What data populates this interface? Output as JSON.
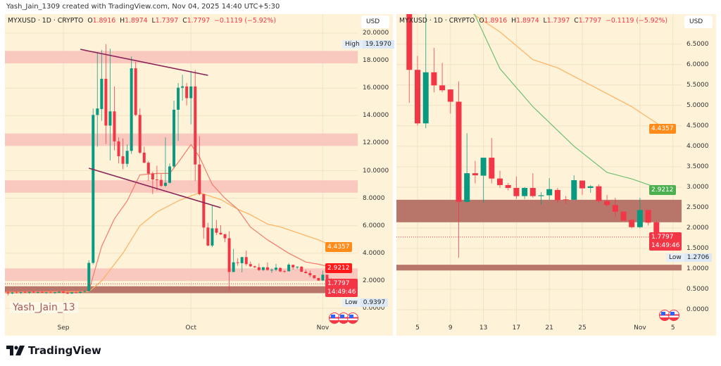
{
  "header": {
    "credit": "Yash_Jain_1309 created with TradingView.com, Nov 04, 2025 14:40 UTC+5:30"
  },
  "legend": {
    "symbol": "MYXUSD · 1D · CRYPTO",
    "o_label": "O",
    "o": "1.8916",
    "h_label": "H",
    "h": "1.8974",
    "l_label": "L",
    "l": "1.7397",
    "c_label": "C",
    "c": "1.7797",
    "change": "−0.1119 (−5.92%)"
  },
  "currency_button": "USD",
  "watermark": "Yash_Jain_13",
  "footer": {
    "brand": "TradingView"
  },
  "colors": {
    "up": "#089981",
    "down": "#f23645",
    "background": "#fef2d8",
    "zone_pink": "#f8c3bd",
    "zone_brown": "#b8756a",
    "trendline": "#8b2456",
    "fast_ma_left": "#f47a6a",
    "fast_ma_right": "#6fbf73",
    "slow_ma": "#ffb15e"
  },
  "icons": {
    "flag": "us-flag-icon",
    "logo": "tradingview-logo-icon"
  },
  "chart_data": [
    {
      "type": "candlestick",
      "panel": "left",
      "y_ticks": [
        "20.0000",
        "18.0000",
        "16.0000",
        "14.0000",
        "12.0000",
        "10.0000",
        "8.0000",
        "6.0000",
        "4.0000",
        "2.0000",
        "0.0000"
      ],
      "x_ticks": [
        {
          "label": "Sep",
          "date": "2025-09-01"
        },
        {
          "label": "Oct",
          "date": "2025-10-01"
        },
        {
          "label": "Nov",
          "date": "2025-11-01"
        }
      ],
      "ylim": [
        0,
        20
      ],
      "grid": true,
      "high": {
        "label": "High",
        "value": "19.1970"
      },
      "low": {
        "label": "Low",
        "value": "0.9397"
      },
      "tags": {
        "slow_ma": "4.4357",
        "fast_ma": "2.9212",
        "last": "1.7797",
        "countdown": "14:49:46"
      },
      "zones_pink": [
        [
          17.8,
          18.7
        ],
        [
          11.8,
          12.7
        ],
        [
          8.4,
          9.3
        ],
        [
          2.0,
          2.9
        ]
      ],
      "zones_brown": [
        [
          1.1,
          1.6
        ]
      ],
      "trendlines": [
        [
          [
            "2025-09-05",
            18.82
          ],
          [
            "2025-10-05",
            16.93
          ]
        ],
        [
          [
            "2025-09-07",
            10.18
          ],
          [
            "2025-10-08",
            7.31
          ]
        ]
      ],
      "fast_ma": [
        [
          "2025-08-18",
          1.2
        ],
        [
          "2025-09-07",
          1.25
        ],
        [
          "2025-09-10",
          4.5
        ],
        [
          "2025-09-13",
          6.5
        ],
        [
          "2025-09-16",
          7.8
        ],
        [
          "2025-09-19",
          9.7
        ],
        [
          "2025-09-23",
          9.8
        ],
        [
          "2025-09-26",
          9.8
        ],
        [
          "2025-09-28",
          10.6
        ],
        [
          "2025-10-01",
          11.9
        ],
        [
          "2025-10-03",
          11.0
        ],
        [
          "2025-10-06",
          9.0
        ],
        [
          "2025-10-09",
          8.0
        ],
        [
          "2025-10-12",
          7.2
        ],
        [
          "2025-10-15",
          5.9
        ],
        [
          "2025-10-19",
          4.97
        ],
        [
          "2025-10-24",
          4.0
        ],
        [
          "2025-10-28",
          3.36
        ],
        [
          "2025-10-31",
          3.2
        ],
        [
          "2025-11-04",
          2.9212
        ]
      ],
      "slow_ma": [
        [
          "2025-08-18",
          1.15
        ],
        [
          "2025-09-07",
          1.2
        ],
        [
          "2025-09-10",
          2.0
        ],
        [
          "2025-09-15",
          4.0
        ],
        [
          "2025-09-19",
          6.0
        ],
        [
          "2025-09-23",
          7.0
        ],
        [
          "2025-09-28",
          7.8
        ],
        [
          "2025-10-03",
          8.4
        ],
        [
          "2025-10-08",
          7.9
        ],
        [
          "2025-10-12",
          7.2
        ],
        [
          "2025-10-15",
          6.8
        ],
        [
          "2025-10-19",
          6.12
        ],
        [
          "2025-10-22",
          5.92
        ],
        [
          "2025-10-31",
          4.97
        ],
        [
          "2025-11-04",
          4.4357
        ]
      ]
    },
    {
      "type": "candlestick",
      "panel": "right",
      "y_ticks": [
        "6.5000",
        "6.0000",
        "5.5000",
        "5.0000",
        "4.5000",
        "4.0000",
        "3.5000",
        "3.0000",
        "2.5000",
        "2.0000",
        "1.5000",
        "1.0000",
        "0.5000",
        "0.0000"
      ],
      "x_ticks": [
        {
          "label": "5",
          "date": "2025-10-05"
        },
        {
          "label": "9",
          "date": "2025-10-09"
        },
        {
          "label": "13",
          "date": "2025-10-13"
        },
        {
          "label": "17",
          "date": "2025-10-17"
        },
        {
          "label": "21",
          "date": "2025-10-21"
        },
        {
          "label": "25",
          "date": "2025-10-25"
        },
        {
          "label": "Nov",
          "date": "2025-11-01"
        },
        {
          "label": "5",
          "date": "2025-11-05"
        }
      ],
      "ylim": [
        0,
        6.8
      ],
      "grid": true,
      "low": {
        "label": "Low",
        "value": "1.2706"
      },
      "tags": {
        "slow_ma": "4.4357",
        "fast_ma": "2.9212",
        "last": "1.7797",
        "countdown": "14:49:46"
      },
      "zones_pink": [],
      "zones_brown": [
        [
          2.14,
          2.69
        ],
        [
          0.96,
          1.1
        ]
      ],
      "trendlines": []
    }
  ],
  "candles": [
    [
      "2025-08-18",
      1.45,
      1.55,
      1.12,
      1.15
    ],
    [
      "2025-08-19",
      1.15,
      1.22,
      0.9397,
      1.08
    ],
    [
      "2025-08-20",
      1.08,
      1.2,
      1.02,
      1.15
    ],
    [
      "2025-08-21",
      1.15,
      1.24,
      1.08,
      1.12
    ],
    [
      "2025-08-22",
      1.12,
      1.2,
      1.05,
      1.17
    ],
    [
      "2025-08-23",
      1.17,
      1.25,
      1.1,
      1.13
    ],
    [
      "2025-08-24",
      1.13,
      1.22,
      1.06,
      1.19
    ],
    [
      "2025-08-25",
      1.19,
      1.26,
      1.12,
      1.15
    ],
    [
      "2025-08-26",
      1.15,
      1.21,
      1.08,
      1.18
    ],
    [
      "2025-08-27",
      1.18,
      1.24,
      1.1,
      1.14
    ],
    [
      "2025-08-28",
      1.14,
      1.2,
      1.07,
      1.16
    ],
    [
      "2025-08-29",
      1.16,
      1.23,
      1.1,
      1.13
    ],
    [
      "2025-08-30",
      1.13,
      1.19,
      1.05,
      1.17
    ],
    [
      "2025-08-31",
      1.17,
      1.25,
      1.12,
      1.2
    ],
    [
      "2025-09-01",
      1.2,
      1.28,
      1.1,
      1.12
    ],
    [
      "2025-09-02",
      1.12,
      1.18,
      1.02,
      1.08
    ],
    [
      "2025-09-03",
      1.08,
      1.2,
      1.04,
      1.16
    ],
    [
      "2025-09-04",
      1.16,
      1.22,
      1.08,
      1.12
    ],
    [
      "2025-09-05",
      1.12,
      1.24,
      1.08,
      1.2
    ],
    [
      "2025-09-06",
      1.2,
      1.3,
      1.15,
      1.25
    ],
    [
      "2025-09-07",
      1.25,
      3.5,
      1.2,
      3.3
    ],
    [
      "2025-09-08",
      3.3,
      14.52,
      3.2,
      14.05
    ],
    [
      "2025-09-09",
      14.05,
      18.61,
      11.74,
      14.52
    ],
    [
      "2025-09-10",
      14.48,
      18.78,
      13.62,
      16.68
    ],
    [
      "2025-09-11",
      16.68,
      19.197,
      11.94,
      13.28
    ],
    [
      "2025-09-12",
      13.28,
      18.87,
      10.74,
      14.31
    ],
    [
      "2025-09-13",
      14.31,
      16.12,
      11.48,
      12.13
    ],
    [
      "2025-09-14",
      12.13,
      12.42,
      10.53,
      11.05
    ],
    [
      "2025-09-15",
      11.05,
      12.34,
      10.1,
      10.5
    ],
    [
      "2025-09-16",
      10.5,
      11.91,
      10.27,
      11.44
    ],
    [
      "2025-09-17",
      11.44,
      18.3,
      11.22,
      17.44
    ],
    [
      "2025-09-18",
      17.44,
      17.92,
      13.97,
      14.05
    ],
    [
      "2025-09-19",
      14.05,
      14.52,
      11.22,
      11.31
    ],
    [
      "2025-09-20",
      11.31,
      11.74,
      10.53,
      10.58
    ],
    [
      "2025-09-21",
      10.58,
      10.7,
      9.25,
      9.79
    ],
    [
      "2025-09-22",
      9.79,
      9.93,
      8.3,
      9.36
    ],
    [
      "2025-09-23",
      9.36,
      10.36,
      8.56,
      9.33
    ],
    [
      "2025-09-24",
      9.33,
      9.76,
      8.81,
      8.9
    ],
    [
      "2025-09-25",
      8.9,
      12.42,
      8.81,
      9.12
    ],
    [
      "2025-09-26",
      9.12,
      10.53,
      9.07,
      10.31
    ],
    [
      "2025-09-27",
      10.31,
      15.09,
      10.19,
      14.43
    ],
    [
      "2025-09-28",
      14.43,
      16.37,
      12.16,
      16.03
    ],
    [
      "2025-09-29",
      16.03,
      16.97,
      15.09,
      16.13
    ],
    [
      "2025-09-30",
      16.12,
      16.37,
      14.74,
      15.27
    ],
    [
      "2025-10-01",
      15.27,
      17.23,
      13.37,
      16.12
    ],
    [
      "2025-10-02",
      16.12,
      17.32,
      9.25,
      10.45
    ],
    [
      "2025-10-03",
      10.45,
      12.51,
      8.21,
      8.3
    ],
    [
      "2025-10-04",
      8.3,
      8.3,
      5.06,
      5.87
    ],
    [
      "2025-10-05",
      5.87,
      6.21,
      4.51,
      4.56
    ],
    [
      "2025-10-06",
      4.56,
      7.5,
      4.44,
      5.81
    ],
    [
      "2025-10-07",
      5.81,
      6.41,
      5.32,
      5.49
    ],
    [
      "2025-10-08",
      5.49,
      6.04,
      5.32,
      5.37
    ],
    [
      "2025-10-09",
      5.39,
      5.39,
      4.8,
      5.09
    ],
    [
      "2025-10-10",
      5.09,
      5.59,
      1.2706,
      2.64
    ],
    [
      "2025-10-11",
      2.64,
      4.32,
      2.62,
      3.34
    ],
    [
      "2025-10-12",
      3.34,
      3.64,
      3.09,
      3.29
    ],
    [
      "2025-10-13",
      3.28,
      3.72,
      2.61,
      3.72
    ],
    [
      "2025-10-14",
      3.72,
      4.2,
      3.09,
      3.21
    ],
    [
      "2025-10-15",
      3.21,
      3.4,
      2.98,
      3.05
    ],
    [
      "2025-10-16",
      3.05,
      3.1,
      2.92,
      2.98
    ],
    [
      "2025-10-17",
      2.98,
      3.26,
      2.71,
      2.78
    ],
    [
      "2025-10-18",
      2.78,
      3.0,
      2.71,
      2.98
    ],
    [
      "2025-10-19",
      2.98,
      3.34,
      2.74,
      2.78
    ],
    [
      "2025-10-20",
      2.78,
      2.88,
      2.57,
      2.8
    ],
    [
      "2025-10-21",
      2.8,
      3.22,
      2.69,
      2.95
    ],
    [
      "2025-10-22",
      2.93,
      2.98,
      2.62,
      2.68
    ],
    [
      "2025-10-23",
      2.7,
      2.78,
      2.59,
      2.69
    ],
    [
      "2025-10-24",
      2.69,
      3.29,
      2.69,
      3.17
    ],
    [
      "2025-10-25",
      3.16,
      3.16,
      2.81,
      2.97
    ],
    [
      "2025-10-26",
      2.98,
      3.05,
      2.86,
      3.02
    ],
    [
      "2025-10-27",
      3.02,
      3.07,
      2.62,
      2.66
    ],
    [
      "2025-10-28",
      2.66,
      2.81,
      2.52,
      2.56
    ],
    [
      "2025-10-29",
      2.56,
      2.74,
      2.26,
      2.4
    ],
    [
      "2025-10-30",
      2.4,
      2.4,
      2.18,
      2.18
    ],
    [
      "2025-10-31",
      2.2,
      2.21,
      1.99,
      2.02
    ],
    [
      "2025-11-01",
      2.02,
      2.74,
      1.99,
      2.44
    ],
    [
      "2025-11-02",
      2.44,
      2.44,
      2.06,
      2.13
    ],
    [
      "2025-11-03",
      2.14,
      2.18,
      1.72,
      1.89
    ],
    [
      "2025-11-04",
      1.8916,
      1.8974,
      1.7397,
      1.7797
    ]
  ]
}
